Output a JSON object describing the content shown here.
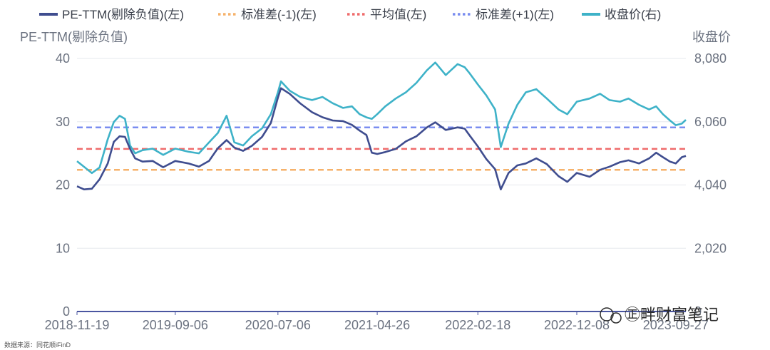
{
  "chart_data": {
    "type": "line",
    "legend": [
      {
        "label": "PE-TTM(剔除负值)(左)",
        "color": "#3f4d8f",
        "style": "solid"
      },
      {
        "label": "标准差(-1)(左)",
        "color": "#f6b26b",
        "style": "dotted"
      },
      {
        "label": "平均值(左)",
        "color": "#ef6b6b",
        "style": "dotted"
      },
      {
        "label": "标准差(+1)(左)",
        "color": "#7a8df0",
        "style": "dotted"
      },
      {
        "label": "收盘价(右)",
        "color": "#3eb2c8",
        "style": "solid"
      }
    ],
    "left_axis": {
      "title": "PE-TTM(剔除负值)",
      "range": [
        0,
        40
      ],
      "ticks": [
        "0",
        "10",
        "20",
        "30",
        "40"
      ]
    },
    "right_axis": {
      "title": "收盘价",
      "range": [
        0,
        8080
      ],
      "ticks": [
        "0",
        "2,020",
        "4,040",
        "6,060",
        "8,080"
      ]
    },
    "x_ticks": [
      "2018-11-19",
      "2019-09-06",
      "2020-07-06",
      "2021-04-26",
      "2022-02-18",
      "2022-12-08",
      "2023-09-27"
    ],
    "x_range": [
      "2018-11-19",
      "2023-10-27"
    ],
    "reference_lines": {
      "std_minus_1": 22.4,
      "mean": 25.7,
      "std_plus_1": 29.1
    },
    "series": [
      {
        "name": "PE-TTM(剔除负值)(左)",
        "axis": "left",
        "points": [
          [
            "2018-11-19",
            19.8
          ],
          [
            "2018-12-10",
            19.3
          ],
          [
            "2019-01-02",
            19.4
          ],
          [
            "2019-01-25",
            20.9
          ],
          [
            "2019-02-18",
            23.4
          ],
          [
            "2019-03-08",
            26.8
          ],
          [
            "2019-03-25",
            27.7
          ],
          [
            "2019-04-10",
            27.6
          ],
          [
            "2019-04-25",
            25.7
          ],
          [
            "2019-05-10",
            24.2
          ],
          [
            "2019-06-01",
            23.7
          ],
          [
            "2019-07-01",
            23.8
          ],
          [
            "2019-08-01",
            22.8
          ],
          [
            "2019-09-06",
            23.8
          ],
          [
            "2019-10-15",
            23.4
          ],
          [
            "2019-11-15",
            22.9
          ],
          [
            "2019-12-15",
            23.8
          ],
          [
            "2020-01-10",
            25.8
          ],
          [
            "2020-02-05",
            27.1
          ],
          [
            "2020-02-28",
            25.9
          ],
          [
            "2020-03-25",
            25.4
          ],
          [
            "2020-04-20",
            26.2
          ],
          [
            "2020-05-20",
            27.6
          ],
          [
            "2020-06-15",
            29.8
          ],
          [
            "2020-07-06",
            33.8
          ],
          [
            "2020-07-15",
            35.3
          ],
          [
            "2020-08-10",
            34.4
          ],
          [
            "2020-09-10",
            32.9
          ],
          [
            "2020-10-15",
            31.5
          ],
          [
            "2020-11-15",
            30.7
          ],
          [
            "2020-12-15",
            30.2
          ],
          [
            "2021-01-15",
            30.1
          ],
          [
            "2021-02-10",
            29.5
          ],
          [
            "2021-03-05",
            28.6
          ],
          [
            "2021-03-25",
            27.9
          ],
          [
            "2021-04-10",
            25.1
          ],
          [
            "2021-04-26",
            24.9
          ],
          [
            "2021-05-20",
            25.2
          ],
          [
            "2021-06-20",
            25.7
          ],
          [
            "2021-07-20",
            26.9
          ],
          [
            "2021-08-20",
            27.7
          ],
          [
            "2021-09-20",
            29.1
          ],
          [
            "2021-10-15",
            29.9
          ],
          [
            "2021-11-15",
            28.7
          ],
          [
            "2021-12-20",
            29.1
          ],
          [
            "2022-01-10",
            28.9
          ],
          [
            "2022-01-25",
            27.8
          ],
          [
            "2022-02-18",
            26.1
          ],
          [
            "2022-03-15",
            24.1
          ],
          [
            "2022-04-10",
            22.5
          ],
          [
            "2022-04-27",
            19.3
          ],
          [
            "2022-05-20",
            21.9
          ],
          [
            "2022-06-15",
            23.1
          ],
          [
            "2022-07-10",
            23.4
          ],
          [
            "2022-08-10",
            24.2
          ],
          [
            "2022-09-10",
            23.3
          ],
          [
            "2022-10-15",
            21.4
          ],
          [
            "2022-11-10",
            20.5
          ],
          [
            "2022-12-08",
            21.9
          ],
          [
            "2023-01-15",
            21.3
          ],
          [
            "2023-02-15",
            22.4
          ],
          [
            "2023-03-15",
            22.9
          ],
          [
            "2023-04-15",
            23.6
          ],
          [
            "2023-05-10",
            23.9
          ],
          [
            "2023-06-10",
            23.4
          ],
          [
            "2023-07-10",
            24.2
          ],
          [
            "2023-07-31",
            25.1
          ],
          [
            "2023-08-20",
            24.4
          ],
          [
            "2023-09-10",
            23.7
          ],
          [
            "2023-09-27",
            23.4
          ],
          [
            "2023-10-15",
            24.4
          ],
          [
            "2023-10-27",
            24.6
          ]
        ]
      },
      {
        "name": "收盘价(右)",
        "axis": "right",
        "points": [
          [
            "2018-11-19",
            4800
          ],
          [
            "2018-12-10",
            4620
          ],
          [
            "2019-01-02",
            4420
          ],
          [
            "2019-01-25",
            4600
          ],
          [
            "2019-02-18",
            5500
          ],
          [
            "2019-03-08",
            6050
          ],
          [
            "2019-03-25",
            6250
          ],
          [
            "2019-04-10",
            6150
          ],
          [
            "2019-04-25",
            5300
          ],
          [
            "2019-05-10",
            5050
          ],
          [
            "2019-06-01",
            5150
          ],
          [
            "2019-07-01",
            5200
          ],
          [
            "2019-08-01",
            5000
          ],
          [
            "2019-09-06",
            5200
          ],
          [
            "2019-10-15",
            5100
          ],
          [
            "2019-11-15",
            5050
          ],
          [
            "2019-12-15",
            5400
          ],
          [
            "2020-01-10",
            5700
          ],
          [
            "2020-02-05",
            6250
          ],
          [
            "2020-02-28",
            5400
          ],
          [
            "2020-03-25",
            5300
          ],
          [
            "2020-04-20",
            5600
          ],
          [
            "2020-05-20",
            5850
          ],
          [
            "2020-06-15",
            6300
          ],
          [
            "2020-07-06",
            7000
          ],
          [
            "2020-07-15",
            7350
          ],
          [
            "2020-08-10",
            7050
          ],
          [
            "2020-09-10",
            6850
          ],
          [
            "2020-10-15",
            6750
          ],
          [
            "2020-11-15",
            6850
          ],
          [
            "2020-12-15",
            6650
          ],
          [
            "2021-01-15",
            6500
          ],
          [
            "2021-02-10",
            6550
          ],
          [
            "2021-03-05",
            6300
          ],
          [
            "2021-03-25",
            6200
          ],
          [
            "2021-04-10",
            6150
          ],
          [
            "2021-04-26",
            6300
          ],
          [
            "2021-05-20",
            6550
          ],
          [
            "2021-06-20",
            6800
          ],
          [
            "2021-07-20",
            7000
          ],
          [
            "2021-08-20",
            7300
          ],
          [
            "2021-09-20",
            7700
          ],
          [
            "2021-10-15",
            7950
          ],
          [
            "2021-11-15",
            7550
          ],
          [
            "2021-12-20",
            7900
          ],
          [
            "2022-01-10",
            7800
          ],
          [
            "2022-01-25",
            7600
          ],
          [
            "2022-02-18",
            7250
          ],
          [
            "2022-03-15",
            6900
          ],
          [
            "2022-04-10",
            6450
          ],
          [
            "2022-04-27",
            5250
          ],
          [
            "2022-05-20",
            6000
          ],
          [
            "2022-06-15",
            6600
          ],
          [
            "2022-07-10",
            7000
          ],
          [
            "2022-08-10",
            7100
          ],
          [
            "2022-09-10",
            6800
          ],
          [
            "2022-10-15",
            6450
          ],
          [
            "2022-11-10",
            6300
          ],
          [
            "2022-12-08",
            6700
          ],
          [
            "2023-01-15",
            6800
          ],
          [
            "2023-02-15",
            6950
          ],
          [
            "2023-03-15",
            6750
          ],
          [
            "2023-04-15",
            6700
          ],
          [
            "2023-05-10",
            6800
          ],
          [
            "2023-06-10",
            6600
          ],
          [
            "2023-07-10",
            6450
          ],
          [
            "2023-07-31",
            6550
          ],
          [
            "2023-08-20",
            6300
          ],
          [
            "2023-09-10",
            6100
          ],
          [
            "2023-09-27",
            5950
          ],
          [
            "2023-10-15",
            6000
          ],
          [
            "2023-10-27",
            6120
          ]
        ]
      }
    ],
    "grid": true,
    "legend_position": "top"
  },
  "footer": {
    "source": "数据来源：同花顺iFinD",
    "watermark": "㊣畔财富笔记"
  }
}
